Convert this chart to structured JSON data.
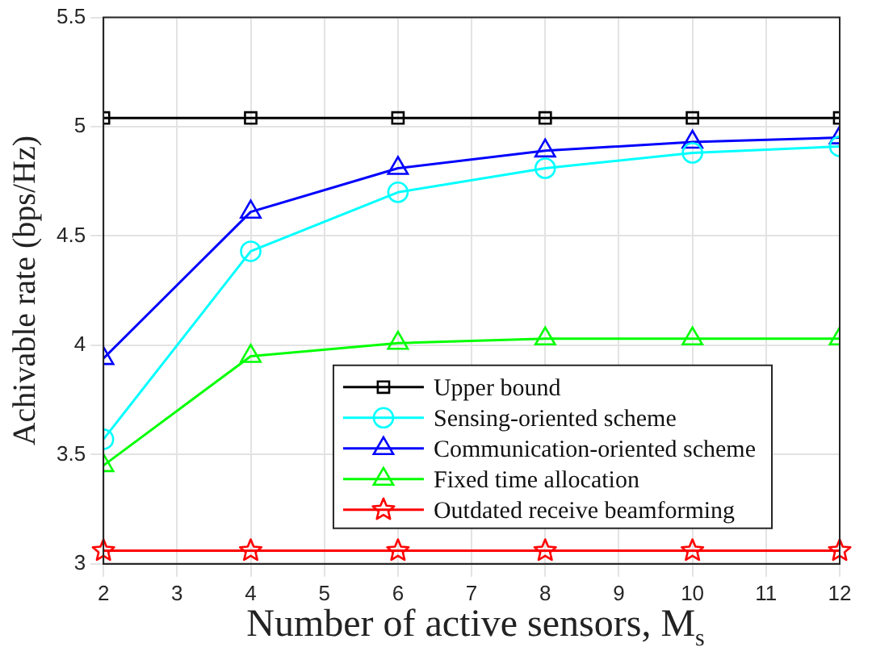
{
  "chart_data": {
    "type": "line",
    "xlabel": "Number of active sensors, M$_{s}$",
    "ylabel": "Achivable rate (bps/Hz)",
    "x": [
      2,
      4,
      6,
      8,
      10,
      12
    ],
    "xlim": [
      2,
      12
    ],
    "xticks": [
      2,
      3,
      4,
      5,
      6,
      7,
      8,
      9,
      10,
      11,
      12
    ],
    "ylim": [
      3,
      5.5
    ],
    "yticks": [
      3,
      3.5,
      4,
      4.5,
      5,
      5.5
    ],
    "grid": true,
    "legend": "bottom right",
    "series": [
      {
        "name": "Upper bound",
        "color": "#000000",
        "marker": "square",
        "values": [
          5.04,
          5.04,
          5.04,
          5.04,
          5.04,
          5.04
        ]
      },
      {
        "name": "Sensing-oriented scheme",
        "color": "#00ffff",
        "marker": "circle",
        "values": [
          3.57,
          4.43,
          4.7,
          4.81,
          4.88,
          4.91
        ]
      },
      {
        "name": "Communication-oriented scheme",
        "color": "#0000ff",
        "marker": "triangle",
        "values": [
          3.94,
          4.61,
          4.81,
          4.89,
          4.93,
          4.95
        ]
      },
      {
        "name": "Fixed time allocation",
        "color": "#00ff00",
        "marker": "triangle",
        "values": [
          3.45,
          3.95,
          4.01,
          4.03,
          4.03,
          4.03
        ]
      },
      {
        "name": "Outdated receive beamforming",
        "color": "#ff0000",
        "marker": "star",
        "values": [
          3.06,
          3.06,
          3.06,
          3.06,
          3.06,
          3.06
        ]
      }
    ]
  }
}
